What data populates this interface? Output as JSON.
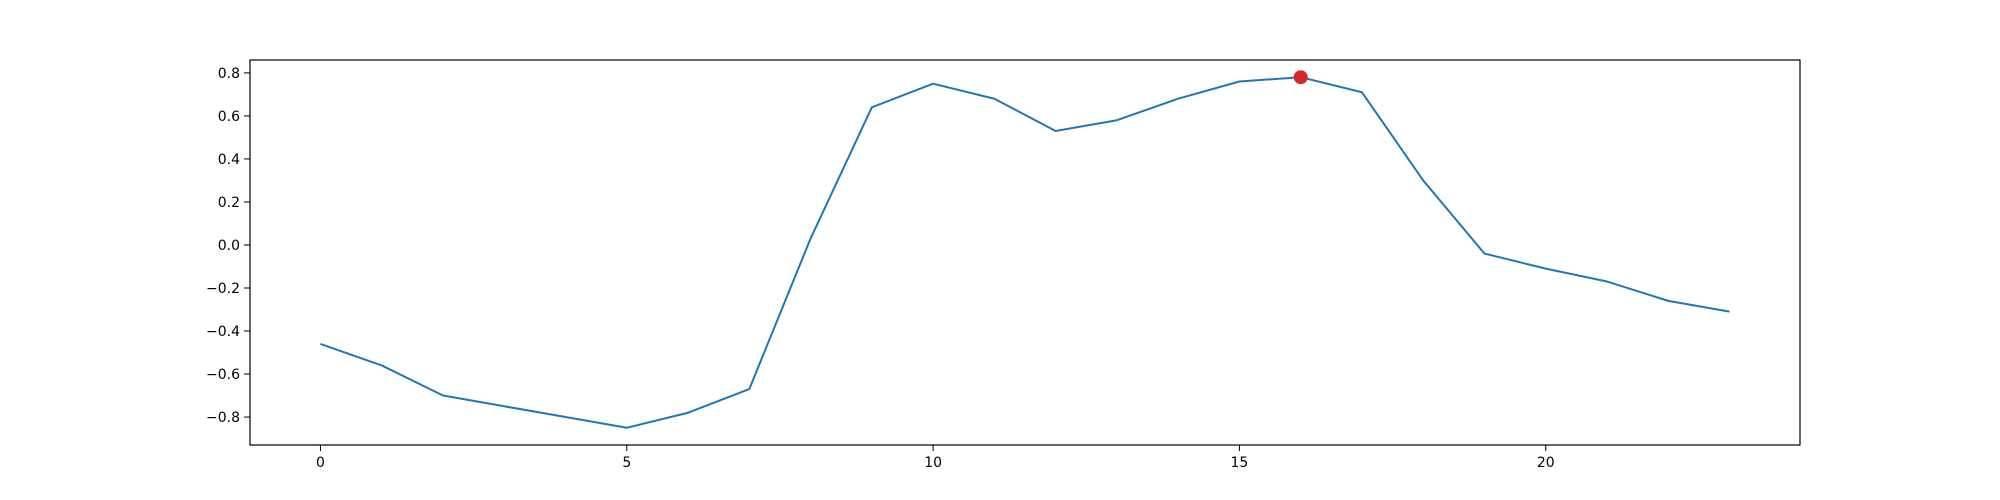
{
  "chart_data": {
    "type": "line",
    "title": "",
    "xlabel": "",
    "ylabel": "",
    "x": [
      0,
      1,
      2,
      3,
      4,
      5,
      6,
      7,
      8,
      9,
      10,
      11,
      12,
      13,
      14,
      15,
      16,
      17,
      18,
      19,
      20,
      21,
      22,
      23
    ],
    "series": [
      {
        "values": [
          -0.46,
          -0.56,
          -0.7,
          -0.75,
          -0.8,
          -0.85,
          -0.78,
          -0.67,
          0.03,
          0.64,
          0.75,
          0.68,
          0.53,
          0.58,
          0.68,
          0.76,
          0.78,
          0.71,
          0.3,
          -0.04,
          -0.11,
          -0.17,
          -0.26,
          -0.31
        ],
        "color": "#1f77b4"
      }
    ],
    "highlight": {
      "x": 16,
      "y": 0.78,
      "color": "#d62728"
    },
    "xlim": [
      -1.15,
      24.15
    ],
    "ylim": [
      -0.93,
      0.86
    ],
    "xticks": [
      0,
      5,
      10,
      15,
      20
    ],
    "xtick_labels": [
      "0",
      "5",
      "10",
      "15",
      "20"
    ],
    "yticks": [
      -0.8,
      -0.6,
      -0.4,
      -0.2,
      0.0,
      0.2,
      0.4,
      0.6,
      0.8
    ],
    "ytick_labels": [
      "−0.8",
      "−0.6",
      "−0.4",
      "−0.2",
      "0.0",
      "0.2",
      "0.4",
      "0.6",
      "0.8"
    ],
    "grid": false,
    "legend": "none"
  }
}
